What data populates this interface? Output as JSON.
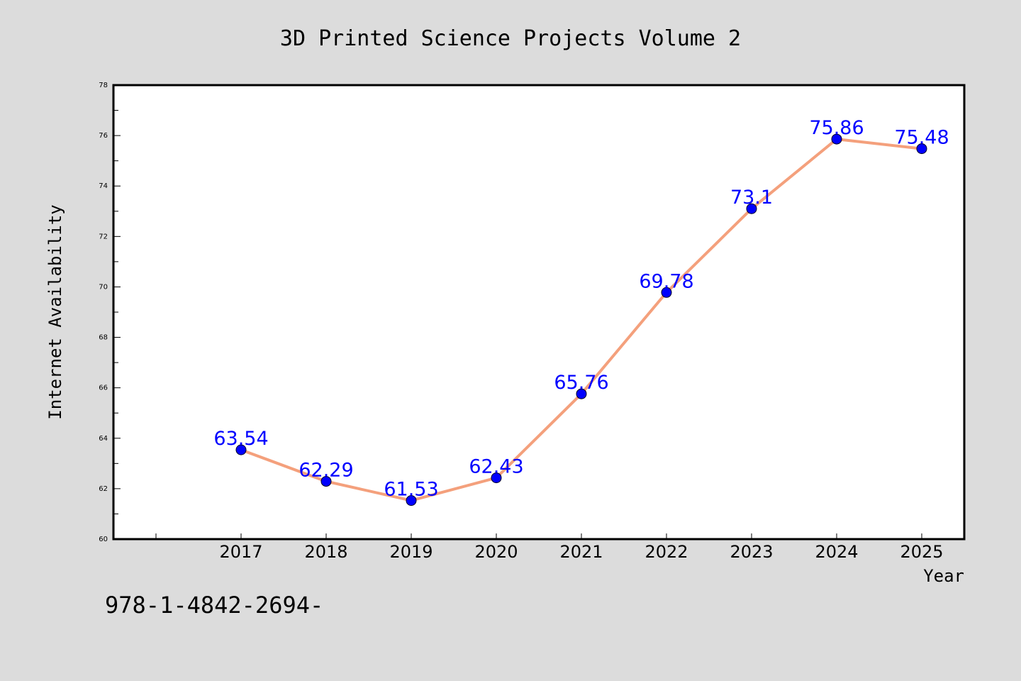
{
  "chart_data": {
    "type": "line",
    "title": "3D Printed Science Projects Volume 2",
    "xlabel": "Year",
    "ylabel": "Internet Availability",
    "footer_text": "978-1-4842-2694-",
    "categories": [
      "2017",
      "2018",
      "2019",
      "2020",
      "2021",
      "2022",
      "2023",
      "2024",
      "2025"
    ],
    "series": [
      {
        "values": [
          63.54,
          62.29,
          61.53,
          62.43,
          65.76,
          69.78,
          73.1,
          75.86,
          75.48
        ],
        "labels": [
          "63.54",
          "62.29",
          "61.53",
          "62.43",
          "65.76",
          "69.78",
          "73.1",
          "75.86",
          "75.48"
        ],
        "line_color": "#f4a07c",
        "marker_color": "#0000ff"
      }
    ],
    "ylim": [
      60,
      78
    ],
    "yticks": [
      "60",
      "62",
      "64",
      "66",
      "68",
      "70",
      "72",
      "74",
      "76",
      "78"
    ],
    "grid": false,
    "legend": "none",
    "colors": {
      "background": "#dcdcdc",
      "plot_background": "#ffffff",
      "data_label": "#0000ff",
      "axis": "#000000"
    }
  }
}
